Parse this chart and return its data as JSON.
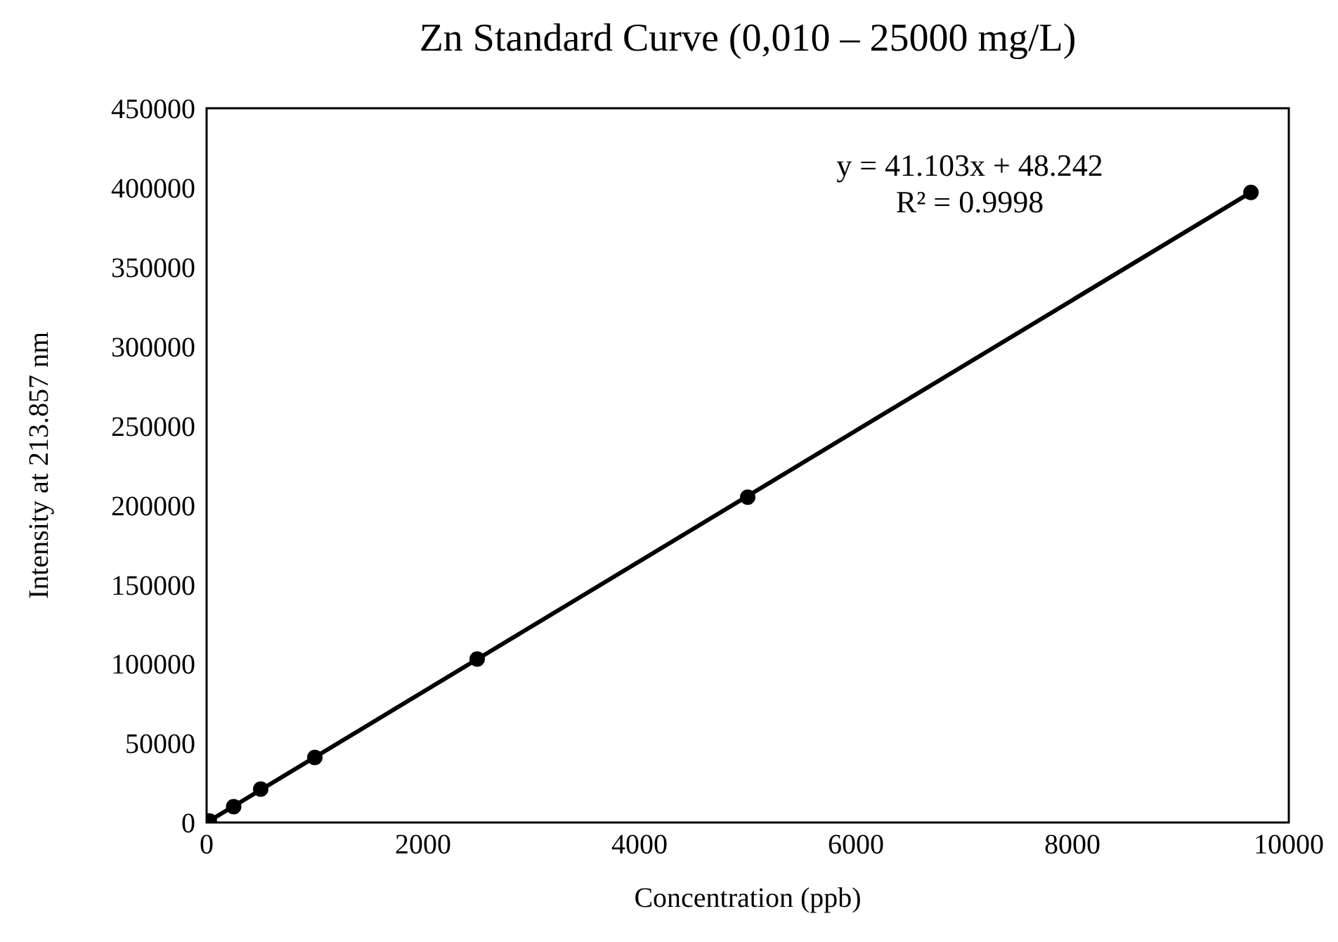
{
  "chart_data": {
    "type": "scatter",
    "title": "Zn Standard Curve (0,010 – 25000 mg/L)",
    "xlabel": "Concentration (ppb)",
    "ylabel": "Intensity at 213.857 nm",
    "series": [
      {
        "type": "line",
        "color": "#000000",
        "marker": "none",
        "x": [
          0,
          9650
        ],
        "values": [
          0,
          397000
        ]
      },
      {
        "color": "#000000",
        "x": [
          25,
          250,
          500,
          1000,
          2500,
          5000,
          9650
        ],
        "values": [
          1000,
          10000,
          21000,
          41000,
          103000,
          205000,
          397000
        ]
      }
    ],
    "xlim": [
      0,
      10000
    ],
    "xticks": [
      0,
      2000,
      4000,
      6000,
      8000,
      10000
    ],
    "ylim": [
      0,
      450000
    ],
    "yticks": [
      0,
      50000,
      100000,
      150000,
      200000,
      250000,
      300000,
      350000,
      400000,
      450000
    ],
    "grid": false,
    "marker": "circle",
    "annotations": [
      "y = 41.103x + 48.242",
      "R² = 0.9998"
    ]
  }
}
